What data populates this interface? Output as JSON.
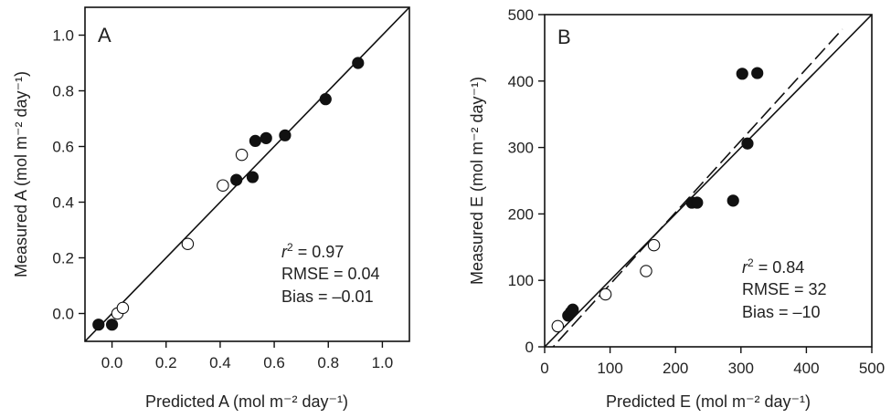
{
  "chart_data": [
    {
      "type": "scatter",
      "panel_label": "A",
      "xlabel": "Predicted A (mol m⁻² day⁻¹)",
      "ylabel": "Measured A (mol m⁻² day⁻¹)",
      "xlim": [
        -0.1,
        1.1
      ],
      "ylim": [
        -0.1,
        1.1
      ],
      "xticks": [
        0.0,
        0.2,
        0.4,
        0.6,
        0.8,
        1.0
      ],
      "yticks": [
        0.0,
        0.2,
        0.4,
        0.6,
        0.8,
        1.0
      ],
      "xtick_labels": [
        "0.0",
        "0.2",
        "0.4",
        "0.6",
        "0.8",
        "1.0"
      ],
      "ytick_labels": [
        "0.0",
        "0.2",
        "0.4",
        "0.6",
        "0.8",
        "1.0"
      ],
      "grid": false,
      "series": [
        {
          "marker": "filled-circle",
          "color": "#111111",
          "points": [
            [
              -0.05,
              -0.04
            ],
            [
              0.0,
              -0.04
            ],
            [
              0.46,
              0.48
            ],
            [
              0.52,
              0.49
            ],
            [
              0.53,
              0.62
            ],
            [
              0.57,
              0.63
            ],
            [
              0.64,
              0.64
            ],
            [
              0.79,
              0.77
            ],
            [
              0.91,
              0.9
            ]
          ]
        },
        {
          "marker": "open-circle",
          "color": "#111111",
          "points": [
            [
              0.02,
              0.0
            ],
            [
              0.04,
              0.02
            ],
            [
              0.28,
              0.25
            ],
            [
              0.41,
              0.46
            ],
            [
              0.48,
              0.57
            ]
          ]
        }
      ],
      "lines": [
        {
          "style": "solid",
          "from": [
            -0.1,
            -0.1
          ],
          "to": [
            1.1,
            1.1
          ]
        }
      ],
      "stats": {
        "r2": "0.97",
        "rmse": "RMSE = 0.04",
        "bias": "Bias = –0.01"
      }
    },
    {
      "type": "scatter",
      "panel_label": "B",
      "xlabel": "Predicted E (mol m⁻² day⁻¹)",
      "ylabel": "Measured E (mol m⁻² day⁻¹)",
      "xlim": [
        0,
        500
      ],
      "ylim": [
        0,
        500
      ],
      "xticks": [
        0,
        100,
        200,
        300,
        400,
        500
      ],
      "yticks": [
        0,
        100,
        200,
        300,
        400,
        500
      ],
      "xtick_labels": [
        "0",
        "100",
        "200",
        "300",
        "400",
        "500"
      ],
      "ytick_labels": [
        "0",
        "100",
        "200",
        "300",
        "400",
        "500"
      ],
      "grid": false,
      "series": [
        {
          "marker": "filled-circle",
          "color": "#111111",
          "points": [
            [
              36,
              47
            ],
            [
              40,
              52
            ],
            [
              43,
              56
            ],
            [
              225,
              217
            ],
            [
              233,
              217
            ],
            [
              288,
              220
            ],
            [
              302,
              411
            ],
            [
              310,
              306
            ],
            [
              325,
              412
            ]
          ]
        },
        {
          "marker": "open-circle",
          "color": "#111111",
          "points": [
            [
              20,
              31
            ],
            [
              93,
              79
            ],
            [
              155,
              114
            ],
            [
              167,
              153
            ]
          ]
        }
      ],
      "lines": [
        {
          "style": "solid",
          "from": [
            0,
            0
          ],
          "to": [
            500,
            500
          ]
        },
        {
          "style": "dashed",
          "from": [
            0,
            -14
          ],
          "to": [
            455,
            478
          ]
        }
      ],
      "stats": {
        "r2": "0.84",
        "rmse": "RMSE = 32",
        "bias": "Bias = –10"
      }
    }
  ]
}
